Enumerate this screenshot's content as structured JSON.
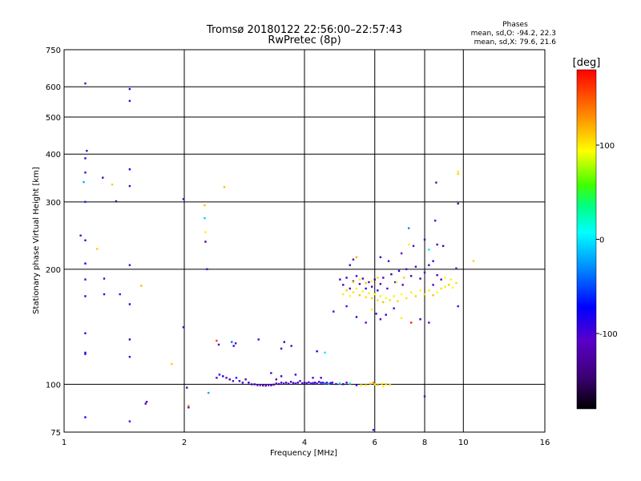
{
  "title_line1": "Tromsø 20180122 22:56:00–22:57:43",
  "title_line2": "RwPretec (8p)",
  "phase_box": {
    "heading": "Phases",
    "line_o": "mean, sd,O: -94.2, 22.3",
    "line_x": "mean, sd,X:  79.6, 21.6"
  },
  "colorbar": {
    "label": "[deg]",
    "ticks": [
      {
        "value": 100,
        "label": "100"
      },
      {
        "value": 0,
        "label": "0"
      },
      {
        "value": -100,
        "label": "-100"
      }
    ],
    "range": [
      -180,
      180
    ]
  },
  "chart_data": {
    "type": "scatter",
    "xlabel": "Frequency [MHz]",
    "ylabel": "Stationary phase Virtual Height [km]",
    "xscale": "log",
    "yscale": "log",
    "xlim": [
      1,
      16
    ],
    "ylim": [
      75,
      750
    ],
    "xticks": [
      {
        "value": 1,
        "label": "1"
      },
      {
        "value": 2,
        "label": "2"
      },
      {
        "value": 4,
        "label": "4"
      },
      {
        "value": 6,
        "label": "6"
      },
      {
        "value": 8,
        "label": "8"
      },
      {
        "value": 10,
        "label": "10"
      },
      {
        "value": 16,
        "label": "16"
      }
    ],
    "yticks": [
      {
        "value": 75,
        "label": "75"
      },
      {
        "value": 100,
        "label": "100"
      },
      {
        "value": 200,
        "label": "200"
      },
      {
        "value": 300,
        "label": "300"
      },
      {
        "value": 400,
        "label": "400"
      },
      {
        "value": 500,
        "label": "500"
      },
      {
        "value": 600,
        "label": "600"
      },
      {
        "value": 750,
        "label": "750"
      }
    ],
    "grid": true,
    "points": [
      {
        "x": 1.13,
        "y": 612,
        "phase": -110
      },
      {
        "x": 1.14,
        "y": 408,
        "phase": -100
      },
      {
        "x": 1.13,
        "y": 390,
        "phase": -90
      },
      {
        "x": 1.13,
        "y": 358,
        "phase": -105
      },
      {
        "x": 1.12,
        "y": 338,
        "phase": -20
      },
      {
        "x": 1.13,
        "y": 300,
        "phase": -60
      },
      {
        "x": 1.1,
        "y": 245,
        "phase": -110
      },
      {
        "x": 1.13,
        "y": 238,
        "phase": -100
      },
      {
        "x": 1.13,
        "y": 207,
        "phase": -80
      },
      {
        "x": 1.13,
        "y": 188,
        "phase": -100
      },
      {
        "x": 1.13,
        "y": 170,
        "phase": -90
      },
      {
        "x": 1.13,
        "y": 136,
        "phase": -95
      },
      {
        "x": 1.13,
        "y": 121,
        "phase": -85
      },
      {
        "x": 1.13,
        "y": 120,
        "phase": -100
      },
      {
        "x": 1.13,
        "y": 82,
        "phase": -70
      },
      {
        "x": 1.25,
        "y": 347,
        "phase": -120
      },
      {
        "x": 1.32,
        "y": 333,
        "phase": 110
      },
      {
        "x": 1.35,
        "y": 301,
        "phase": -140
      },
      {
        "x": 1.26,
        "y": 189,
        "phase": -105
      },
      {
        "x": 1.26,
        "y": 172,
        "phase": -95
      },
      {
        "x": 1.21,
        "y": 226,
        "phase": 110
      },
      {
        "x": 1.38,
        "y": 172,
        "phase": -100
      },
      {
        "x": 1.46,
        "y": 592,
        "phase": -80
      },
      {
        "x": 1.46,
        "y": 551,
        "phase": -100
      },
      {
        "x": 1.46,
        "y": 365,
        "phase": -90
      },
      {
        "x": 1.46,
        "y": 330,
        "phase": -110
      },
      {
        "x": 1.46,
        "y": 205,
        "phase": -100
      },
      {
        "x": 1.46,
        "y": 162,
        "phase": -90
      },
      {
        "x": 1.46,
        "y": 131,
        "phase": -85
      },
      {
        "x": 1.46,
        "y": 118,
        "phase": -100
      },
      {
        "x": 1.46,
        "y": 80,
        "phase": -110
      },
      {
        "x": 1.56,
        "y": 181,
        "phase": 115
      },
      {
        "x": 1.61,
        "y": 90,
        "phase": -100
      },
      {
        "x": 1.6,
        "y": 89,
        "phase": -105
      },
      {
        "x": 1.86,
        "y": 113,
        "phase": 110
      },
      {
        "x": 1.99,
        "y": 305,
        "phase": -100
      },
      {
        "x": 1.99,
        "y": 141,
        "phase": -90
      },
      {
        "x": 2.03,
        "y": 98,
        "phase": -110
      },
      {
        "x": 2.05,
        "y": 88,
        "phase": 120
      },
      {
        "x": 2.05,
        "y": 87,
        "phase": -110
      },
      {
        "x": 2.25,
        "y": 294,
        "phase": 115
      },
      {
        "x": 2.25,
        "y": 272,
        "phase": -10
      },
      {
        "x": 2.26,
        "y": 250,
        "phase": 100
      },
      {
        "x": 2.26,
        "y": 236,
        "phase": -130
      },
      {
        "x": 2.28,
        "y": 200,
        "phase": -100
      },
      {
        "x": 2.3,
        "y": 95,
        "phase": -20
      },
      {
        "x": 2.52,
        "y": 328,
        "phase": 115
      },
      {
        "x": 2.41,
        "y": 130,
        "phase": 160
      },
      {
        "x": 2.44,
        "y": 127,
        "phase": -100
      },
      {
        "x": 2.63,
        "y": 129,
        "phase": -40
      },
      {
        "x": 2.69,
        "y": 128,
        "phase": -110
      },
      {
        "x": 2.66,
        "y": 126,
        "phase": -95
      },
      {
        "x": 3.07,
        "y": 131,
        "phase": -100
      },
      {
        "x": 3.5,
        "y": 124,
        "phase": -90
      },
      {
        "x": 3.56,
        "y": 129,
        "phase": -130
      },
      {
        "x": 3.71,
        "y": 126,
        "phase": -100
      },
      {
        "x": 4.3,
        "y": 122,
        "phase": -90
      },
      {
        "x": 4.5,
        "y": 121,
        "phase": 0
      },
      {
        "x": 2.41,
        "y": 104,
        "phase": -110
      },
      {
        "x": 2.45,
        "y": 106,
        "phase": -90
      },
      {
        "x": 2.5,
        "y": 105,
        "phase": -70
      },
      {
        "x": 2.55,
        "y": 104,
        "phase": -100
      },
      {
        "x": 2.6,
        "y": 103,
        "phase": -120
      },
      {
        "x": 2.65,
        "y": 102,
        "phase": -105
      },
      {
        "x": 2.7,
        "y": 104,
        "phase": -60
      },
      {
        "x": 2.75,
        "y": 102,
        "phase": -95
      },
      {
        "x": 2.8,
        "y": 101,
        "phase": -110
      },
      {
        "x": 2.85,
        "y": 103,
        "phase": -100
      },
      {
        "x": 2.9,
        "y": 101,
        "phase": -85
      },
      {
        "x": 2.95,
        "y": 100,
        "phase": -120
      },
      {
        "x": 3.0,
        "y": 100,
        "phase": -100
      },
      {
        "x": 3.05,
        "y": 99.5,
        "phase": -110
      },
      {
        "x": 3.1,
        "y": 99.5,
        "phase": -105
      },
      {
        "x": 3.15,
        "y": 99.3,
        "phase": -125
      },
      {
        "x": 3.2,
        "y": 99.2,
        "phase": -100
      },
      {
        "x": 3.25,
        "y": 99.5,
        "phase": -115
      },
      {
        "x": 3.3,
        "y": 99.4,
        "phase": -100
      },
      {
        "x": 3.35,
        "y": 99.8,
        "phase": -130
      },
      {
        "x": 3.4,
        "y": 100.5,
        "phase": -105
      },
      {
        "x": 3.45,
        "y": 100.2,
        "phase": -95
      },
      {
        "x": 3.5,
        "y": 101,
        "phase": -110
      },
      {
        "x": 3.55,
        "y": 100.5,
        "phase": -100
      },
      {
        "x": 3.6,
        "y": 101,
        "phase": -120
      },
      {
        "x": 3.65,
        "y": 100.3,
        "phase": -90
      },
      {
        "x": 3.7,
        "y": 101.5,
        "phase": -100
      },
      {
        "x": 3.75,
        "y": 100.8,
        "phase": -110
      },
      {
        "x": 3.8,
        "y": 100.5,
        "phase": -105
      },
      {
        "x": 3.85,
        "y": 101,
        "phase": -95
      },
      {
        "x": 3.9,
        "y": 102,
        "phase": -100
      },
      {
        "x": 3.95,
        "y": 100.6,
        "phase": -120
      },
      {
        "x": 4.0,
        "y": 101,
        "phase": -100
      },
      {
        "x": 4.05,
        "y": 100.7,
        "phase": -110
      },
      {
        "x": 4.1,
        "y": 101.2,
        "phase": -95
      },
      {
        "x": 4.15,
        "y": 100.5,
        "phase": -105
      },
      {
        "x": 4.2,
        "y": 100.8,
        "phase": -100
      },
      {
        "x": 4.25,
        "y": 101,
        "phase": -85
      },
      {
        "x": 4.3,
        "y": 100.5,
        "phase": -110
      },
      {
        "x": 4.35,
        "y": 101.5,
        "phase": -100
      },
      {
        "x": 4.4,
        "y": 100.9,
        "phase": -95
      },
      {
        "x": 4.45,
        "y": 101,
        "phase": -60
      },
      {
        "x": 4.5,
        "y": 100.5,
        "phase": -40
      },
      {
        "x": 4.55,
        "y": 101,
        "phase": -100
      },
      {
        "x": 4.6,
        "y": 100.3,
        "phase": -20
      },
      {
        "x": 4.65,
        "y": 100.8,
        "phase": -110
      },
      {
        "x": 4.7,
        "y": 101,
        "phase": -90
      },
      {
        "x": 4.8,
        "y": 100.2,
        "phase": -100
      },
      {
        "x": 4.9,
        "y": 100.5,
        "phase": -10
      },
      {
        "x": 5.0,
        "y": 100.1,
        "phase": -95
      },
      {
        "x": 3.3,
        "y": 107,
        "phase": -110
      },
      {
        "x": 3.5,
        "y": 105,
        "phase": -100
      },
      {
        "x": 3.8,
        "y": 106,
        "phase": -90
      },
      {
        "x": 4.2,
        "y": 104,
        "phase": -105
      },
      {
        "x": 4.4,
        "y": 104,
        "phase": -100
      },
      {
        "x": 3.4,
        "y": 103,
        "phase": -120
      },
      {
        "x": 5.1,
        "y": 101,
        "phase": -100
      },
      {
        "x": 5.2,
        "y": 100.5,
        "phase": 20
      },
      {
        "x": 5.4,
        "y": 99.5,
        "phase": -90
      },
      {
        "x": 5.55,
        "y": 99.5,
        "phase": 105
      },
      {
        "x": 5.7,
        "y": 99.4,
        "phase": 95
      },
      {
        "x": 5.85,
        "y": 100.5,
        "phase": 110
      },
      {
        "x": 6.0,
        "y": 100,
        "phase": 100
      },
      {
        "x": 6.1,
        "y": 99.5,
        "phase": 115
      },
      {
        "x": 6.25,
        "y": 100.5,
        "phase": 95
      },
      {
        "x": 6.4,
        "y": 100.1,
        "phase": 110
      },
      {
        "x": 6.55,
        "y": 99.7,
        "phase": 105
      },
      {
        "x": 5.95,
        "y": 101,
        "phase": 130
      },
      {
        "x": 6.3,
        "y": 98.8,
        "phase": 100
      },
      {
        "x": 4.91,
        "y": 188,
        "phase": -100
      },
      {
        "x": 5.0,
        "y": 182,
        "phase": -110
      },
      {
        "x": 5.1,
        "y": 190,
        "phase": -95
      },
      {
        "x": 5.2,
        "y": 178,
        "phase": -120
      },
      {
        "x": 5.3,
        "y": 186,
        "phase": -100
      },
      {
        "x": 5.4,
        "y": 192,
        "phase": -105
      },
      {
        "x": 5.5,
        "y": 183,
        "phase": -115
      },
      {
        "x": 5.6,
        "y": 189,
        "phase": -100
      },
      {
        "x": 5.7,
        "y": 178,
        "phase": -90
      },
      {
        "x": 5.8,
        "y": 185,
        "phase": -110
      },
      {
        "x": 5.9,
        "y": 180,
        "phase": -100
      },
      {
        "x": 6.0,
        "y": 188,
        "phase": -120
      },
      {
        "x": 6.1,
        "y": 176,
        "phase": -95
      },
      {
        "x": 6.2,
        "y": 183,
        "phase": -105
      },
      {
        "x": 6.3,
        "y": 190,
        "phase": -100
      },
      {
        "x": 6.45,
        "y": 178,
        "phase": -110
      },
      {
        "x": 6.6,
        "y": 194,
        "phase": -130
      },
      {
        "x": 6.75,
        "y": 185,
        "phase": -100
      },
      {
        "x": 6.9,
        "y": 198,
        "phase": -90
      },
      {
        "x": 7.05,
        "y": 182,
        "phase": -115
      },
      {
        "x": 7.2,
        "y": 200,
        "phase": -100
      },
      {
        "x": 7.4,
        "y": 192,
        "phase": -120
      },
      {
        "x": 7.6,
        "y": 203,
        "phase": -105
      },
      {
        "x": 7.8,
        "y": 189,
        "phase": -100
      },
      {
        "x": 8.0,
        "y": 196,
        "phase": -110
      },
      {
        "x": 8.2,
        "y": 205,
        "phase": -95
      },
      {
        "x": 8.4,
        "y": 182,
        "phase": -100
      },
      {
        "x": 8.6,
        "y": 193,
        "phase": -120
      },
      {
        "x": 8.8,
        "y": 188,
        "phase": -100
      },
      {
        "x": 5.2,
        "y": 205,
        "phase": -100
      },
      {
        "x": 5.4,
        "y": 215,
        "phase": 120
      },
      {
        "x": 5.3,
        "y": 212,
        "phase": -110
      },
      {
        "x": 6.2,
        "y": 215,
        "phase": -90
      },
      {
        "x": 6.5,
        "y": 210,
        "phase": -100
      },
      {
        "x": 7.0,
        "y": 220,
        "phase": -110
      },
      {
        "x": 7.3,
        "y": 232,
        "phase": 100
      },
      {
        "x": 7.5,
        "y": 230,
        "phase": -100
      },
      {
        "x": 8.0,
        "y": 239,
        "phase": -120
      },
      {
        "x": 8.6,
        "y": 232,
        "phase": -105
      },
      {
        "x": 8.9,
        "y": 230,
        "phase": -130
      },
      {
        "x": 8.5,
        "y": 268,
        "phase": -100
      },
      {
        "x": 7.3,
        "y": 256,
        "phase": -30
      },
      {
        "x": 8.55,
        "y": 337,
        "phase": -110
      },
      {
        "x": 9.7,
        "y": 360,
        "phase": 100
      },
      {
        "x": 9.7,
        "y": 355,
        "phase": 110
      },
      {
        "x": 9.7,
        "y": 297,
        "phase": -120
      },
      {
        "x": 9.6,
        "y": 201,
        "phase": -110
      },
      {
        "x": 8.2,
        "y": 225,
        "phase": 0
      },
      {
        "x": 8.4,
        "y": 210,
        "phase": -100
      },
      {
        "x": 5.0,
        "y": 172,
        "phase": 100
      },
      {
        "x": 5.1,
        "y": 176,
        "phase": 110
      },
      {
        "x": 5.2,
        "y": 170,
        "phase": 95
      },
      {
        "x": 5.3,
        "y": 174,
        "phase": 105
      },
      {
        "x": 5.4,
        "y": 178,
        "phase": 100
      },
      {
        "x": 5.5,
        "y": 171,
        "phase": 115
      },
      {
        "x": 5.6,
        "y": 175,
        "phase": 90
      },
      {
        "x": 5.7,
        "y": 169,
        "phase": 105
      },
      {
        "x": 5.8,
        "y": 173,
        "phase": 100
      },
      {
        "x": 5.9,
        "y": 168,
        "phase": 110
      },
      {
        "x": 6.0,
        "y": 172,
        "phase": 95
      },
      {
        "x": 6.1,
        "y": 166,
        "phase": 105
      },
      {
        "x": 6.2,
        "y": 170,
        "phase": 100
      },
      {
        "x": 6.3,
        "y": 164,
        "phase": 115
      },
      {
        "x": 6.4,
        "y": 168,
        "phase": 90
      },
      {
        "x": 6.55,
        "y": 166,
        "phase": 105
      },
      {
        "x": 6.7,
        "y": 170,
        "phase": 100
      },
      {
        "x": 6.85,
        "y": 165,
        "phase": 110
      },
      {
        "x": 7.0,
        "y": 172,
        "phase": 95
      },
      {
        "x": 7.2,
        "y": 168,
        "phase": 105
      },
      {
        "x": 7.4,
        "y": 174,
        "phase": 100
      },
      {
        "x": 7.6,
        "y": 170,
        "phase": 110
      },
      {
        "x": 7.8,
        "y": 176,
        "phase": 95
      },
      {
        "x": 8.0,
        "y": 172,
        "phase": 105
      },
      {
        "x": 8.2,
        "y": 176,
        "phase": 100
      },
      {
        "x": 8.4,
        "y": 171,
        "phase": 115
      },
      {
        "x": 8.6,
        "y": 174,
        "phase": 90
      },
      {
        "x": 8.8,
        "y": 178,
        "phase": 105
      },
      {
        "x": 9.0,
        "y": 180,
        "phase": 100
      },
      {
        "x": 9.2,
        "y": 182,
        "phase": 110
      },
      {
        "x": 9.4,
        "y": 179,
        "phase": 95
      },
      {
        "x": 9.6,
        "y": 184,
        "phase": 105
      },
      {
        "x": 5.3,
        "y": 185,
        "phase": 110
      },
      {
        "x": 5.5,
        "y": 188,
        "phase": 100
      },
      {
        "x": 5.7,
        "y": 184,
        "phase": 115
      },
      {
        "x": 5.9,
        "y": 186,
        "phase": 95
      },
      {
        "x": 6.1,
        "y": 190,
        "phase": 105
      },
      {
        "x": 6.8,
        "y": 185,
        "phase": 100
      },
      {
        "x": 7.1,
        "y": 190,
        "phase": 110
      },
      {
        "x": 9.0,
        "y": 190,
        "phase": 95
      },
      {
        "x": 9.3,
        "y": 188,
        "phase": 100
      },
      {
        "x": 10.6,
        "y": 210,
        "phase": 110
      },
      {
        "x": 4.73,
        "y": 155,
        "phase": -100
      },
      {
        "x": 5.1,
        "y": 160,
        "phase": -110
      },
      {
        "x": 5.4,
        "y": 150,
        "phase": -95
      },
      {
        "x": 5.7,
        "y": 145,
        "phase": -105
      },
      {
        "x": 5.9,
        "y": 157,
        "phase": 100
      },
      {
        "x": 6.05,
        "y": 153,
        "phase": -100
      },
      {
        "x": 6.2,
        "y": 148,
        "phase": -110
      },
      {
        "x": 6.4,
        "y": 152,
        "phase": -90
      },
      {
        "x": 6.7,
        "y": 158,
        "phase": -100
      },
      {
        "x": 7.0,
        "y": 149,
        "phase": 100
      },
      {
        "x": 7.4,
        "y": 145,
        "phase": 170
      },
      {
        "x": 7.8,
        "y": 148,
        "phase": -100
      },
      {
        "x": 8.2,
        "y": 145,
        "phase": -110
      },
      {
        "x": 9.7,
        "y": 160,
        "phase": -100
      },
      {
        "x": 8.0,
        "y": 93,
        "phase": -100
      },
      {
        "x": 5.95,
        "y": 76,
        "phase": -110
      }
    ]
  }
}
